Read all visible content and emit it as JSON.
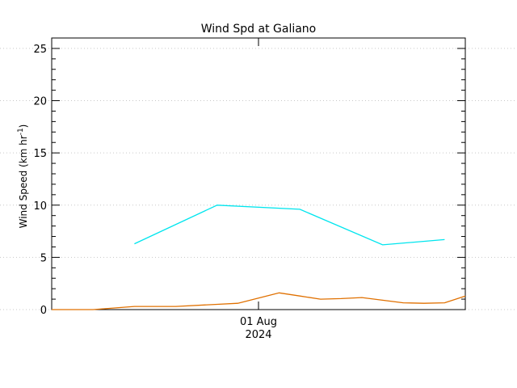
{
  "chart_data": {
    "type": "line",
    "title": "Wind Spd at Galiano",
    "ylabel": "Wind Speed (km hr",
    "ylabel_sup": "-1",
    "ylabel_end": ")",
    "xlabel": "",
    "x_tick": {
      "day": "01 Aug",
      "year": "2024"
    },
    "ylim": [
      0,
      26
    ],
    "y_ticks": [
      0,
      5,
      10,
      15,
      20,
      25
    ],
    "y_minor_step": 1,
    "grid": true,
    "x_hours": [
      -30,
      30
    ],
    "x_tick_hour": 0,
    "series": [
      {
        "color": "#00e5ee",
        "x": [
          -18,
          -6,
          6,
          18,
          27
        ],
        "y": [
          6.3,
          10.0,
          9.6,
          6.2,
          6.7
        ]
      },
      {
        "color": "#e07000",
        "x": [
          -30,
          -24,
          -18,
          -12,
          -6,
          -3,
          0,
          3,
          6,
          9,
          12,
          15,
          18,
          21,
          24,
          27,
          30
        ],
        "y": [
          0,
          0,
          0.3,
          0.3,
          0.5,
          0.6,
          1.1,
          1.6,
          1.3,
          1.0,
          1.05,
          1.15,
          0.9,
          0.65,
          0.6,
          0.65,
          1.3
        ]
      }
    ]
  }
}
